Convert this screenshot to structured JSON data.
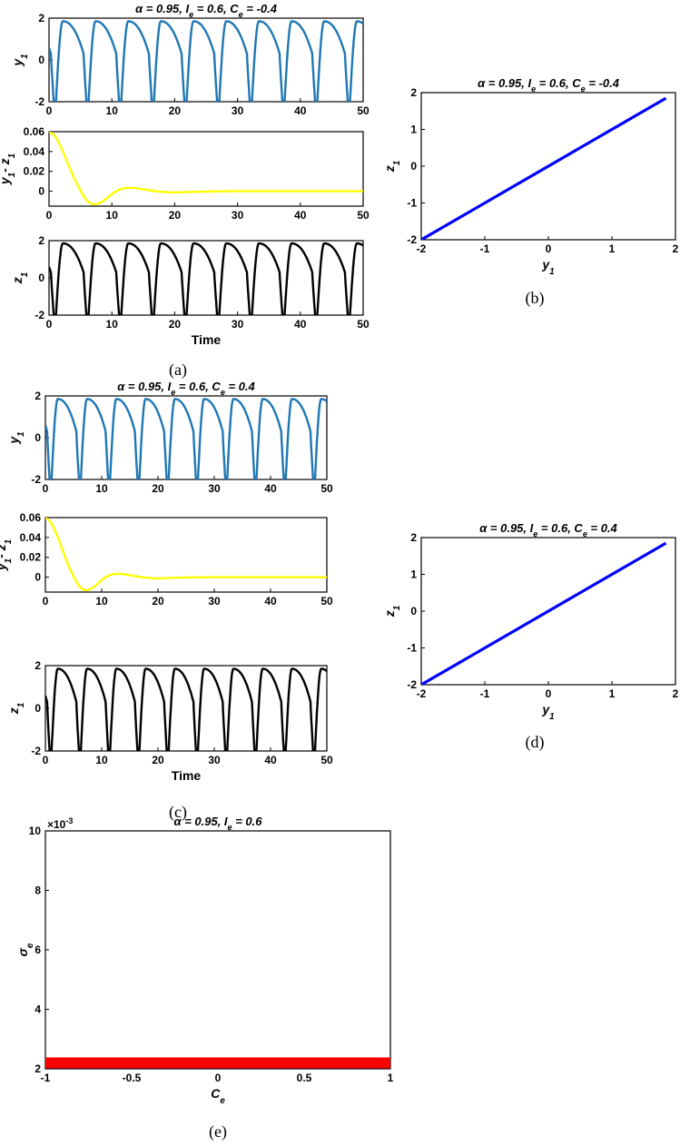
{
  "panels": {
    "a": {
      "label": "(a)"
    },
    "b": {
      "label": "(b)"
    },
    "c": {
      "label": "(c)"
    },
    "d": {
      "label": "(d)"
    },
    "e": {
      "label": "(e)"
    }
  },
  "chart_data": [
    {
      "id": "a_y1",
      "type": "line",
      "title": "α = 0.95,  I_e = 0.6,  C_e = -0.4",
      "xlabel": "",
      "ylabel": "y_1",
      "xlim": [
        0,
        50
      ],
      "ylim": [
        -2,
        2
      ],
      "xticks": [
        0,
        10,
        20,
        30,
        40,
        50
      ],
      "yticks": [
        -2,
        0,
        2
      ],
      "series": [
        {
          "color": "#1f77b4",
          "waveform": "relaxation",
          "amplitude_max": 1.85,
          "amplitude_min": -2,
          "peaks_t": [
            1.1,
            6.3,
            11.5,
            16.7,
            21.9,
            27.1,
            32.3,
            37.5,
            42.7,
            47.9
          ]
        }
      ]
    },
    {
      "id": "a_err",
      "type": "line",
      "title": "",
      "xlabel": "",
      "ylabel": "y_1- z_1",
      "xlim": [
        0,
        50
      ],
      "ylim": [
        -0.015,
        0.06
      ],
      "xticks": [
        0,
        10,
        20,
        30,
        40,
        50
      ],
      "yticks": [
        0,
        0.02,
        0.04,
        0.06
      ],
      "series": [
        {
          "color": "#ffff00",
          "x": [
            0,
            1,
            2,
            3,
            4,
            5,
            6,
            7,
            8,
            9,
            10,
            11,
            12,
            13,
            14,
            15,
            16,
            17,
            18,
            19,
            20,
            22,
            25,
            30,
            35,
            40,
            45,
            50
          ],
          "y": [
            0.06,
            0.055,
            0.043,
            0.028,
            0.013,
            0.001,
            -0.009,
            -0.013,
            -0.012,
            -0.008,
            -0.003,
            0.001,
            0.003,
            0.0035,
            0.003,
            0.002,
            0.001,
            0.0,
            -0.0005,
            -0.001,
            -0.0012,
            -0.0008,
            -0.0003,
            0.0,
            0.0,
            0.0,
            0.0,
            0.0
          ]
        }
      ]
    },
    {
      "id": "a_z1",
      "type": "line",
      "title": "",
      "xlabel": "Time",
      "ylabel": "z_1",
      "xlim": [
        0,
        50
      ],
      "ylim": [
        -2,
        2
      ],
      "xticks": [
        0,
        10,
        20,
        30,
        40,
        50
      ],
      "yticks": [
        -2,
        0,
        2
      ],
      "series": [
        {
          "color": "#000000",
          "waveform": "relaxation",
          "amplitude_max": 1.85,
          "amplitude_min": -2,
          "peaks_t": [
            1.1,
            6.3,
            11.5,
            16.7,
            21.9,
            27.1,
            32.3,
            37.5,
            42.7,
            47.9
          ]
        }
      ]
    },
    {
      "id": "b_phase",
      "type": "line",
      "title": "α = 0.95,  I_e = 0.6,  C_e = -0.4",
      "xlabel": "y_1",
      "ylabel": "z_1",
      "xlim": [
        -2,
        2
      ],
      "ylim": [
        -2,
        2
      ],
      "xticks": [
        -2,
        -1,
        0,
        1,
        2
      ],
      "yticks": [
        -2,
        -1,
        0,
        1,
        2
      ],
      "series": [
        {
          "color": "#0000ff",
          "x": [
            -2,
            1.85
          ],
          "y": [
            -2,
            1.85
          ]
        }
      ]
    },
    {
      "id": "c_y1",
      "type": "line",
      "title": "α = 0.95,  I_e = 0.6,  C_e = 0.4",
      "xlabel": "",
      "ylabel": "y_1",
      "xlim": [
        0,
        50
      ],
      "ylim": [
        -2,
        2
      ],
      "xticks": [
        0,
        10,
        20,
        30,
        40,
        50
      ],
      "yticks": [
        -2,
        0,
        2
      ],
      "series": [
        {
          "color": "#1f77b4",
          "waveform": "relaxation",
          "amplitude_max": 1.85,
          "amplitude_min": -2,
          "peaks_t": [
            1.1,
            6.3,
            11.5,
            16.7,
            21.9,
            27.1,
            32.3,
            37.5,
            42.7,
            47.9
          ]
        }
      ]
    },
    {
      "id": "c_err",
      "type": "line",
      "title": "",
      "xlabel": "",
      "ylabel": "y_1- z_1",
      "xlim": [
        0,
        50
      ],
      "ylim": [
        -0.015,
        0.06
      ],
      "xticks": [
        0,
        10,
        20,
        30,
        40,
        50
      ],
      "yticks": [
        0,
        0.02,
        0.04,
        0.06
      ],
      "series": [
        {
          "color": "#ffff00",
          "x": [
            0,
            1,
            2,
            3,
            4,
            5,
            6,
            7,
            8,
            9,
            10,
            11,
            12,
            13,
            14,
            15,
            16,
            17,
            18,
            19,
            20,
            22,
            25,
            30,
            35,
            40,
            45,
            50
          ],
          "y": [
            0.06,
            0.055,
            0.043,
            0.028,
            0.013,
            0.001,
            -0.009,
            -0.013,
            -0.012,
            -0.008,
            -0.003,
            0.001,
            0.003,
            0.0035,
            0.003,
            0.002,
            0.001,
            0.0,
            -0.0005,
            -0.001,
            -0.0012,
            -0.0008,
            -0.0003,
            0.0,
            0.0,
            0.0,
            0.0,
            0.0
          ]
        }
      ]
    },
    {
      "id": "c_z1",
      "type": "line",
      "title": "",
      "xlabel": "Time",
      "ylabel": "z_1",
      "xlim": [
        0,
        50
      ],
      "ylim": [
        -2,
        2
      ],
      "xticks": [
        0,
        10,
        20,
        30,
        40,
        50
      ],
      "yticks": [
        -2,
        0,
        2
      ],
      "series": [
        {
          "color": "#000000",
          "waveform": "relaxation",
          "amplitude_max": 1.85,
          "amplitude_min": -2,
          "peaks_t": [
            1.1,
            6.3,
            11.5,
            16.7,
            21.9,
            27.1,
            32.3,
            37.5,
            42.7,
            47.9
          ]
        }
      ]
    },
    {
      "id": "d_phase",
      "type": "line",
      "title": "α = 0.95,  I_e = 0.6,  C_e = 0.4",
      "xlabel": "y_1",
      "ylabel": "z_1",
      "xlim": [
        -2,
        2
      ],
      "ylim": [
        -2,
        2
      ],
      "xticks": [
        -2,
        -1,
        0,
        1,
        2
      ],
      "yticks": [
        -2,
        -1,
        0,
        1,
        2
      ],
      "series": [
        {
          "color": "#0000ff",
          "x": [
            -2,
            1.85
          ],
          "y": [
            -2,
            1.85
          ]
        }
      ]
    },
    {
      "id": "e_sigma",
      "type": "scatter",
      "title": "α = 0.95,  I_e = 0.6",
      "xlabel": "C_e",
      "ylabel": "σ_e",
      "xlim": [
        -1,
        1
      ],
      "ylim": [
        2,
        10
      ],
      "xticks": [
        -1,
        -0.5,
        0,
        0.5,
        1
      ],
      "yticks": [
        2,
        4,
        6,
        8,
        10
      ],
      "y_exponent": "×10^-3",
      "series": [
        {
          "color": "#ff0000",
          "x": [
            -1,
            1
          ],
          "y": [
            2.2,
            2.2
          ]
        }
      ]
    }
  ]
}
